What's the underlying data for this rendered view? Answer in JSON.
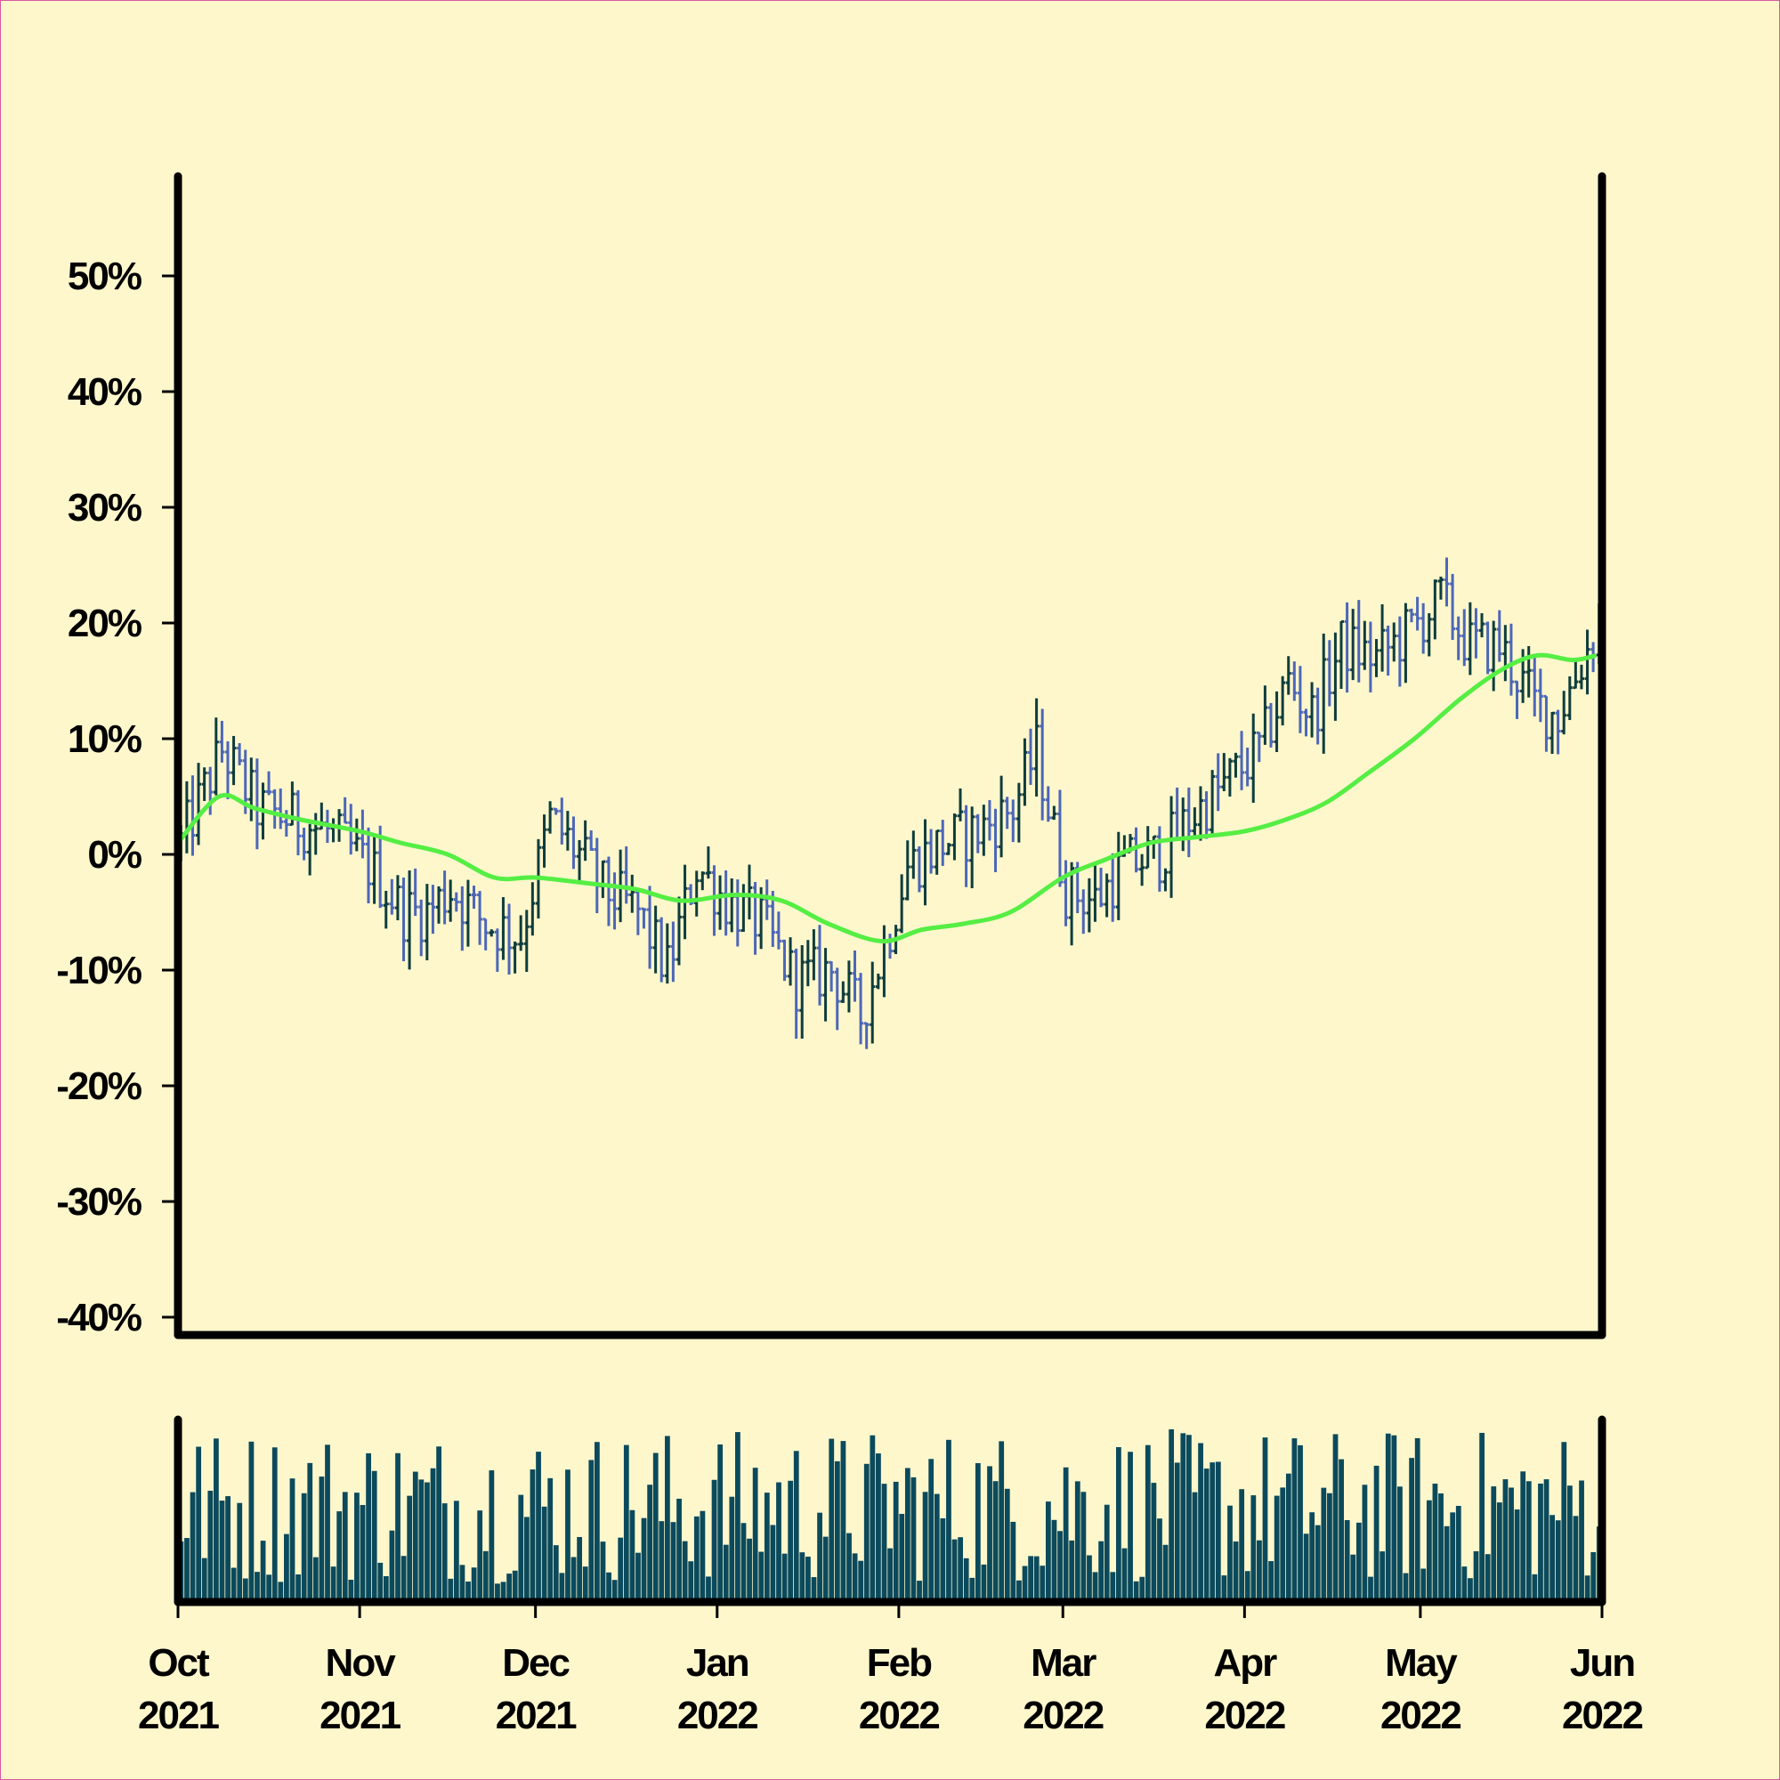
{
  "chart_data": {
    "type": "ohlc",
    "title": "",
    "xlabel": "",
    "ylabel": "",
    "ylim": [
      -0.4,
      0.58
    ],
    "y_ticks": [
      -0.4,
      -0.3,
      -0.2,
      -0.1,
      0.0,
      0.1,
      0.2,
      0.3,
      0.4,
      0.5
    ],
    "y_tick_labels": [
      "-40%",
      "-30%",
      "-20%",
      "-10%",
      "0%",
      "10%",
      "20%",
      "30%",
      "40%",
      "50%"
    ],
    "x_range": [
      "2021-10-01",
      "2022-06-01"
    ],
    "x_ticks": [
      "2021-10-01",
      "2021-11-01",
      "2021-12-01",
      "2022-01-01",
      "2022-02-01",
      "2022-03-01",
      "2022-04-01",
      "2022-05-01",
      "2022-06-01"
    ],
    "x_tick_labels": [
      [
        "Oct",
        "2021"
      ],
      [
        "Nov",
        "2021"
      ],
      [
        "Dec",
        "2021"
      ],
      [
        "Jan",
        "2022"
      ],
      [
        "Feb",
        "2022"
      ],
      [
        "Mar",
        "2022"
      ],
      [
        "Apr",
        "2022"
      ],
      [
        "May",
        "2022"
      ],
      [
        "Jun",
        "2022"
      ]
    ],
    "grid": false,
    "legend": "none",
    "price_anchors": [
      [
        "2021-10-01",
        0.01
      ],
      [
        "2021-10-08",
        0.09
      ],
      [
        "2021-10-14",
        0.04
      ],
      [
        "2021-10-20",
        0.03
      ],
      [
        "2021-10-26",
        0.02
      ],
      [
        "2021-11-02",
        -0.01
      ],
      [
        "2021-11-08",
        -0.05
      ],
      [
        "2021-11-12",
        -0.05
      ],
      [
        "2021-11-16",
        -0.03
      ],
      [
        "2021-11-22",
        -0.06
      ],
      [
        "2021-11-28",
        -0.07
      ],
      [
        "2021-12-03",
        0.03
      ],
      [
        "2021-12-08",
        0.0
      ],
      [
        "2021-12-12",
        -0.03
      ],
      [
        "2021-12-18",
        -0.05
      ],
      [
        "2021-12-23",
        -0.1
      ],
      [
        "2021-12-28",
        -0.01
      ],
      [
        "2022-01-02",
        -0.04
      ],
      [
        "2022-01-08",
        -0.06
      ],
      [
        "2022-01-14",
        -0.11
      ],
      [
        "2022-01-20",
        -0.1
      ],
      [
        "2022-01-25",
        -0.14
      ],
      [
        "2022-01-29",
        -0.08
      ],
      [
        "2022-02-02",
        -0.01
      ],
      [
        "2022-02-08",
        0.01
      ],
      [
        "2022-02-14",
        0.02
      ],
      [
        "2022-02-20",
        0.04
      ],
      [
        "2022-02-24",
        0.09
      ],
      [
        "2022-03-01",
        -0.03
      ],
      [
        "2022-03-06",
        -0.04
      ],
      [
        "2022-03-11",
        -0.01
      ],
      [
        "2022-03-17",
        0.0
      ],
      [
        "2022-03-22",
        0.03
      ],
      [
        "2022-03-28",
        0.06
      ],
      [
        "2022-04-03",
        0.09
      ],
      [
        "2022-04-08",
        0.15
      ],
      [
        "2022-04-12",
        0.12
      ],
      [
        "2022-04-17",
        0.18
      ],
      [
        "2022-04-23",
        0.17
      ],
      [
        "2022-04-28",
        0.19
      ],
      [
        "2022-05-04",
        0.22
      ],
      [
        "2022-05-09",
        0.18
      ],
      [
        "2022-05-14",
        0.18
      ],
      [
        "2022-05-20",
        0.13
      ],
      [
        "2022-05-24",
        0.12
      ],
      [
        "2022-05-31",
        0.2
      ]
    ],
    "moving_average": [
      [
        "2021-10-01",
        0.01
      ],
      [
        "2021-10-08",
        0.05
      ],
      [
        "2021-10-14",
        0.04
      ],
      [
        "2021-10-22",
        0.03
      ],
      [
        "2021-11-01",
        0.02
      ],
      [
        "2021-11-08",
        0.01
      ],
      [
        "2021-11-16",
        0.0
      ],
      [
        "2021-11-24",
        -0.02
      ],
      [
        "2021-12-01",
        -0.02
      ],
      [
        "2021-12-10",
        -0.025
      ],
      [
        "2021-12-18",
        -0.03
      ],
      [
        "2021-12-26",
        -0.04
      ],
      [
        "2022-01-04",
        -0.035
      ],
      [
        "2022-01-12",
        -0.04
      ],
      [
        "2022-01-20",
        -0.06
      ],
      [
        "2022-01-29",
        -0.075
      ],
      [
        "2022-02-05",
        -0.065
      ],
      [
        "2022-02-12",
        -0.06
      ],
      [
        "2022-02-20",
        -0.05
      ],
      [
        "2022-03-01",
        -0.02
      ],
      [
        "2022-03-08",
        -0.005
      ],
      [
        "2022-03-16",
        0.01
      ],
      [
        "2022-03-24",
        0.015
      ],
      [
        "2022-04-01",
        0.02
      ],
      [
        "2022-04-08",
        0.03
      ],
      [
        "2022-04-15",
        0.045
      ],
      [
        "2022-04-22",
        0.07
      ],
      [
        "2022-04-30",
        0.1
      ],
      [
        "2022-05-08",
        0.135
      ],
      [
        "2022-05-15",
        0.16
      ],
      [
        "2022-05-21",
        0.172
      ],
      [
        "2022-05-27",
        0.168
      ],
      [
        "2022-05-31",
        0.172
      ]
    ],
    "volume": {
      "ylim": [
        0,
        1.0
      ],
      "description": "daily volume bars, relative scale"
    },
    "colors": {
      "up_bar": "#0e3d3d",
      "down_bar": "#4c67b8",
      "moving_average": "#55ee44",
      "volume": "#0b4a5c",
      "background": "#fff7cc",
      "border": "#d65a9f",
      "axes": "#000000"
    }
  }
}
